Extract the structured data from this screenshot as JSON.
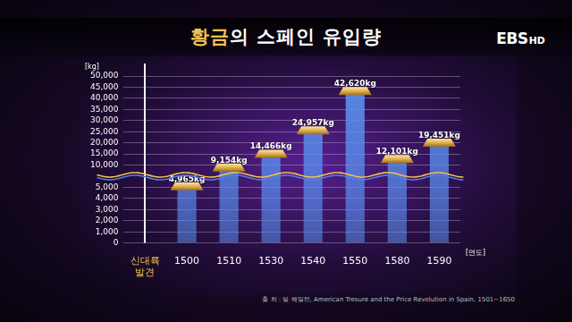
{
  "chart_data": {
    "type": "bar",
    "title": "황금의 스페인 유입량",
    "logo": [
      "EBS",
      "HD"
    ],
    "y_label": "[kg]",
    "x_label": "[연도]",
    "source": "출 처 : 얼 해밀턴, American Tresure and the Price Revolution in Spain, 1501~1650",
    "categories": [
      "신대륙 발견",
      "1500",
      "1510",
      "1530",
      "1540",
      "1550",
      "1580",
      "1590"
    ],
    "values": [
      null,
      4965,
      9154,
      14466,
      24957,
      42620,
      12101,
      19451
    ],
    "value_labels": [
      null,
      "4,965kg",
      "9,154kg",
      "14,466kg",
      "24,957kg",
      "42,620kg",
      "12,101kg",
      "19,451kg"
    ],
    "color": "#5b8ff0",
    "ylim": [
      0,
      50000
    ],
    "yticks": [
      0,
      {
        "value": 1000,
        "label": "1,000"
      },
      {
        "value": 2000,
        "label": "2,000"
      },
      {
        "value": 3000,
        "label": "3,000"
      },
      {
        "value": 4000,
        "label": "4,000"
      },
      {
        "value": 5000,
        "label": "5,000"
      },
      {
        "value": 10000,
        "label": "10,000"
      },
      {
        "value": 15000,
        "label": "15,000"
      },
      {
        "value": 20000,
        "label": "20,000"
      },
      {
        "value": 25000,
        "label": "25,000"
      },
      {
        "value": 30000,
        "label": "30,000"
      },
      {
        "value": 35000,
        "label": "35,000"
      },
      {
        "value": 40000,
        "label": "40,000"
      },
      {
        "value": 45000,
        "label": "45,000"
      },
      {
        "value": 50000,
        "label": "50,000"
      }
    ],
    "grid": true,
    "data_labels": true
  }
}
